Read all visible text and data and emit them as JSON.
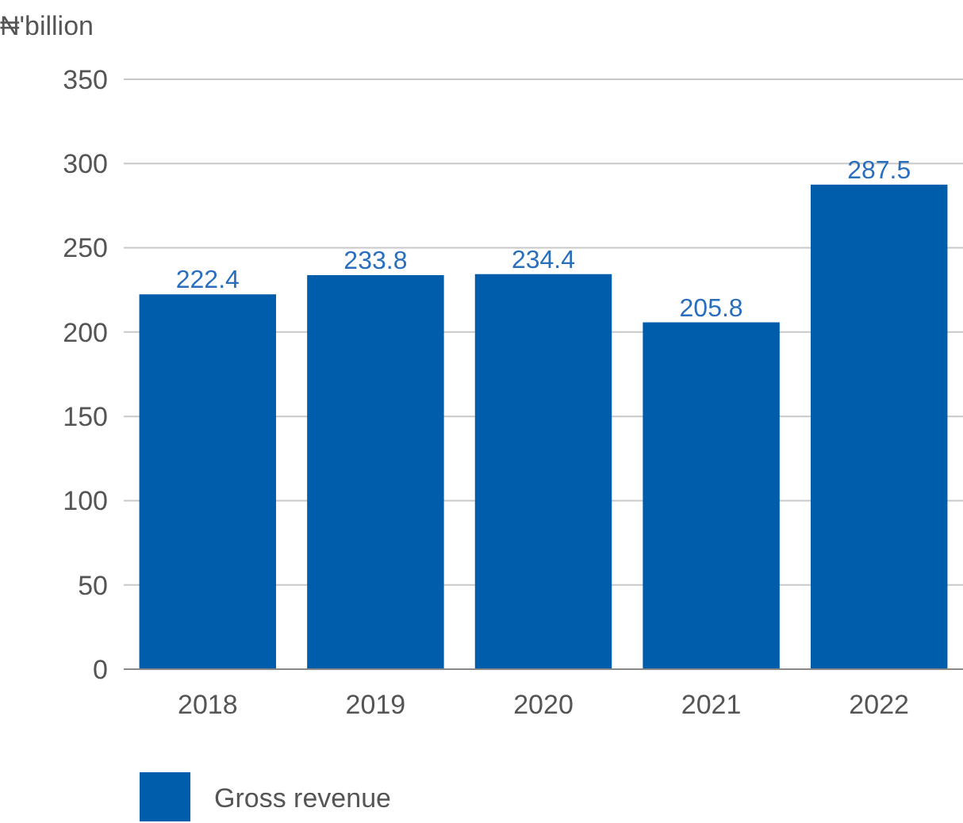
{
  "chart_data": {
    "type": "bar",
    "ylabel": "₦'billion",
    "categories": [
      "2018",
      "2019",
      "2020",
      "2021",
      "2022"
    ],
    "series": [
      {
        "name": "Gross revenue",
        "color": "#005dab",
        "values": [
          222.4,
          233.8,
          234.4,
          205.8,
          287.5
        ]
      }
    ],
    "ylim": [
      0,
      350
    ],
    "yticks": [
      0,
      50,
      100,
      150,
      200,
      250,
      300,
      350
    ],
    "grid": "y",
    "data_labels": true,
    "legend": "bottom left"
  }
}
